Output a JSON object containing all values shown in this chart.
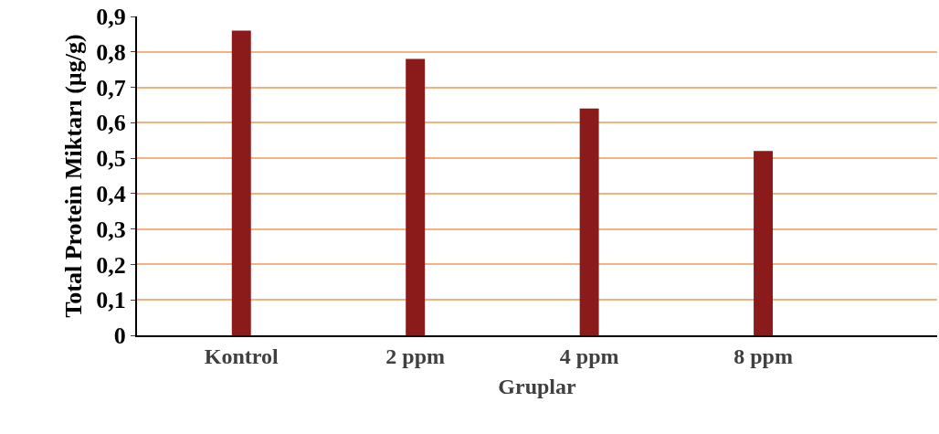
{
  "chart_data": {
    "type": "bar",
    "xlabel": "Gruplar",
    "ylabel": "Total Protein Miktarı (µg/g)",
    "categories": [
      "Kontrol",
      "2 ppm",
      "4 ppm",
      "8 ppm"
    ],
    "values": [
      0.86,
      0.78,
      0.64,
      0.52
    ],
    "color": "#8b1a1a",
    "ylim": [
      0,
      0.9
    ],
    "yticks": [
      {
        "value": 0,
        "label": "0"
      },
      {
        "value": 0.1,
        "label": "0,1"
      },
      {
        "value": 0.2,
        "label": "0,2"
      },
      {
        "value": 0.3,
        "label": "0,3"
      },
      {
        "value": 0.4,
        "label": "0,4"
      },
      {
        "value": 0.5,
        "label": "0,5"
      },
      {
        "value": 0.6,
        "label": "0,6"
      },
      {
        "value": 0.7,
        "label": "0,7"
      },
      {
        "value": 0.8,
        "label": "0,8"
      },
      {
        "value": 0.9,
        "label": "0,9"
      }
    ],
    "grid": "y"
  }
}
